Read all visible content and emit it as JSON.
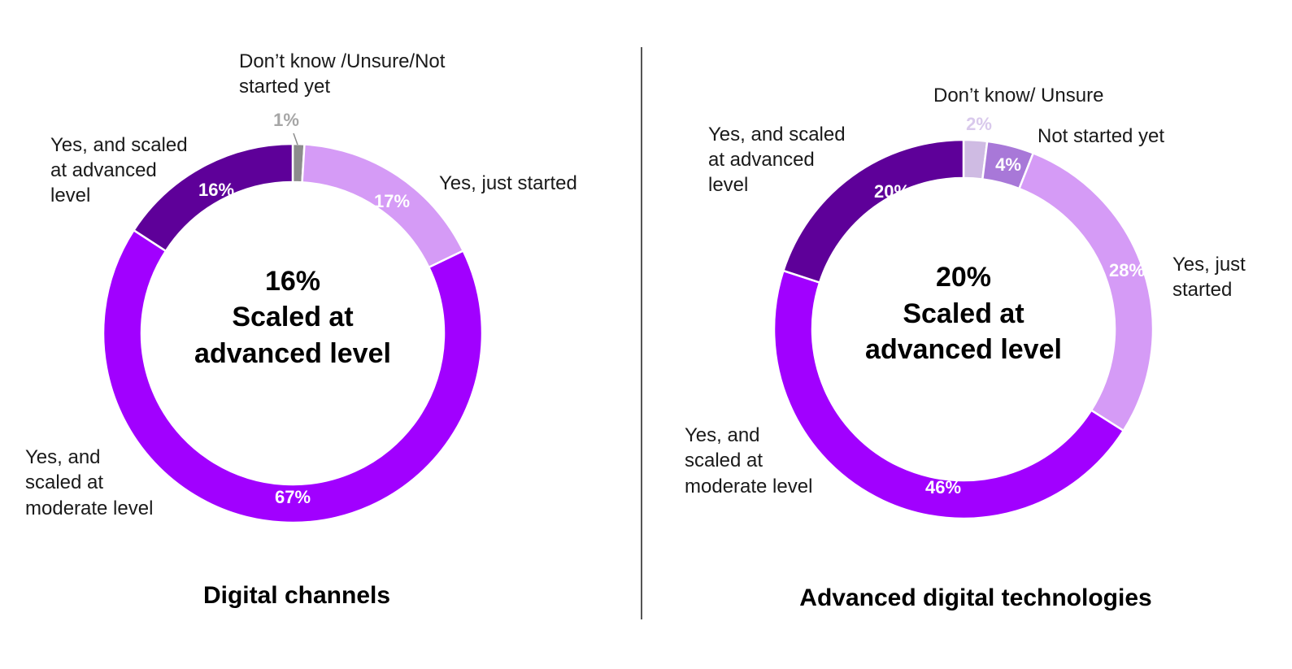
{
  "chart_data": [
    {
      "type": "pie",
      "variant": "donut",
      "title": "Digital channels",
      "center_value": "16%",
      "center_text": [
        "Scaled at",
        "advanced level"
      ],
      "slices": [
        {
          "key": "dont-know",
          "value": 1,
          "label_text": "1%",
          "category_lines": [
            "Don’t know /Unsure/Not",
            "started yet"
          ],
          "color": "#8c8c8c",
          "value_color": "#a6a6a6"
        },
        {
          "key": "just-started",
          "value": 17,
          "label_text": "17%",
          "category_lines": [
            "Yes, just started"
          ],
          "color": "#d59bf6",
          "value_color": "#ffffff"
        },
        {
          "key": "moderate",
          "value": 67,
          "label_text": "67%",
          "category_lines": [
            "Yes, and",
            "scaled at",
            "moderate level"
          ],
          "color": "#a100ff",
          "value_color": "#ffffff"
        },
        {
          "key": "advanced",
          "value": 16,
          "label_text": "16%",
          "category_lines": [
            "Yes, and scaled",
            "at advanced",
            "level"
          ],
          "color": "#5e0099",
          "value_color": "#ffffff"
        }
      ]
    },
    {
      "type": "pie",
      "variant": "donut",
      "title": "Advanced digital technologies",
      "center_value": "20%",
      "center_text": [
        "Scaled at",
        "advanced level"
      ],
      "slices": [
        {
          "key": "dont-know",
          "value": 2,
          "label_text": "2%",
          "category_lines": [
            "Don’t know/ Unsure"
          ],
          "color": "#cfbbe3",
          "value_color": "#d9c9ec"
        },
        {
          "key": "not-started",
          "value": 4,
          "label_text": "4%",
          "category_lines": [
            "Not started yet"
          ],
          "color": "#a878d8",
          "value_color": "#ffffff"
        },
        {
          "key": "just-started",
          "value": 28,
          "label_text": "28%",
          "category_lines": [
            "Yes, just",
            "started"
          ],
          "color": "#d59bf6",
          "value_color": "#ffffff"
        },
        {
          "key": "moderate",
          "value": 46,
          "label_text": "46%",
          "category_lines": [
            "Yes, and",
            "scaled at",
            "moderate level"
          ],
          "color": "#a100ff",
          "value_color": "#ffffff"
        },
        {
          "key": "advanced",
          "value": 20,
          "label_text": "20%",
          "category_lines": [
            "Yes, and scaled",
            "at advanced",
            "level"
          ],
          "color": "#5e0099",
          "value_color": "#ffffff"
        }
      ]
    }
  ]
}
